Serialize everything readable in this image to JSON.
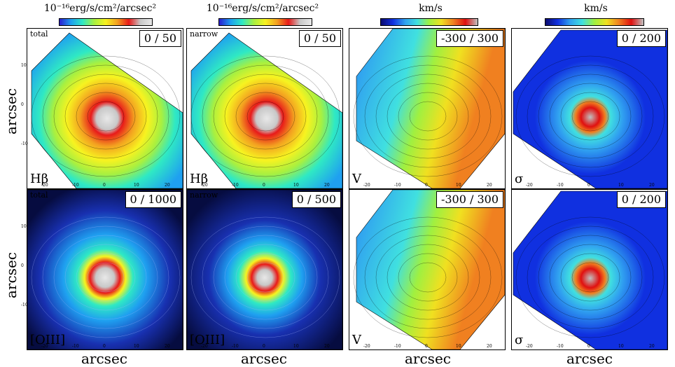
{
  "colorbars": [
    {
      "label": "10⁻¹⁶erg/s/cm²/arcsec²",
      "gradient": "flux"
    },
    {
      "label": "10⁻¹⁶erg/s/cm²/arcsec²",
      "gradient": "flux"
    },
    {
      "label": "km/s",
      "gradient": "vel"
    },
    {
      "label": "km/s",
      "gradient": "sig"
    }
  ],
  "panels": [
    {
      "top_label": "total",
      "range": "0 / 50",
      "corner": "Hβ",
      "kind": "flux",
      "mask": "tilt"
    },
    {
      "top_label": "narrow",
      "range": "0 / 50",
      "corner": "Hβ",
      "kind": "flux",
      "mask": "tilt"
    },
    {
      "top_label": "",
      "range": "-300 / 300",
      "corner": "V",
      "kind": "vel",
      "mask": "tilt"
    },
    {
      "top_label": "",
      "range": "0 / 200",
      "corner": "σ",
      "kind": "sig",
      "mask": "tilt"
    },
    {
      "top_label": "total",
      "range": "0 / 1000",
      "corner": "[OIII]",
      "kind": "oiii",
      "mask": "full"
    },
    {
      "top_label": "narrow",
      "range": "0 / 500",
      "corner": "[OIII]",
      "kind": "oiii2",
      "mask": "full"
    },
    {
      "top_label": "",
      "range": "-300 / 300",
      "corner": "V",
      "kind": "vel",
      "mask": "tilt"
    },
    {
      "top_label": "",
      "range": "0 / 200",
      "corner": "σ",
      "kind": "sig",
      "mask": "tilt"
    }
  ],
  "axis_label": "arcsec",
  "x_ticks": [
    "-20",
    "-10",
    "0",
    "10",
    "20"
  ],
  "y_ticks": [
    "10",
    "0",
    "-10"
  ],
  "colors": {
    "flux_scale": [
      "#2a1dd0",
      "#1fa0f0",
      "#2fe9c4",
      "#a8f040",
      "#f7f320",
      "#f3a020",
      "#e81a1a",
      "#c8c8c8",
      "#e8e8e8"
    ],
    "vel_scale": [
      "#0a0a6e",
      "#1030e0",
      "#30a0f0",
      "#40e0e0",
      "#a0f040",
      "#f0e020",
      "#f08020",
      "#e01010",
      "#c0c0c0"
    ],
    "sig_scale": [
      "#0a0a6e",
      "#1030e0",
      "#30a0f0",
      "#40e0e0",
      "#a0f040",
      "#f0e020",
      "#f08020",
      "#e01010",
      "#c0c0c0"
    ]
  }
}
